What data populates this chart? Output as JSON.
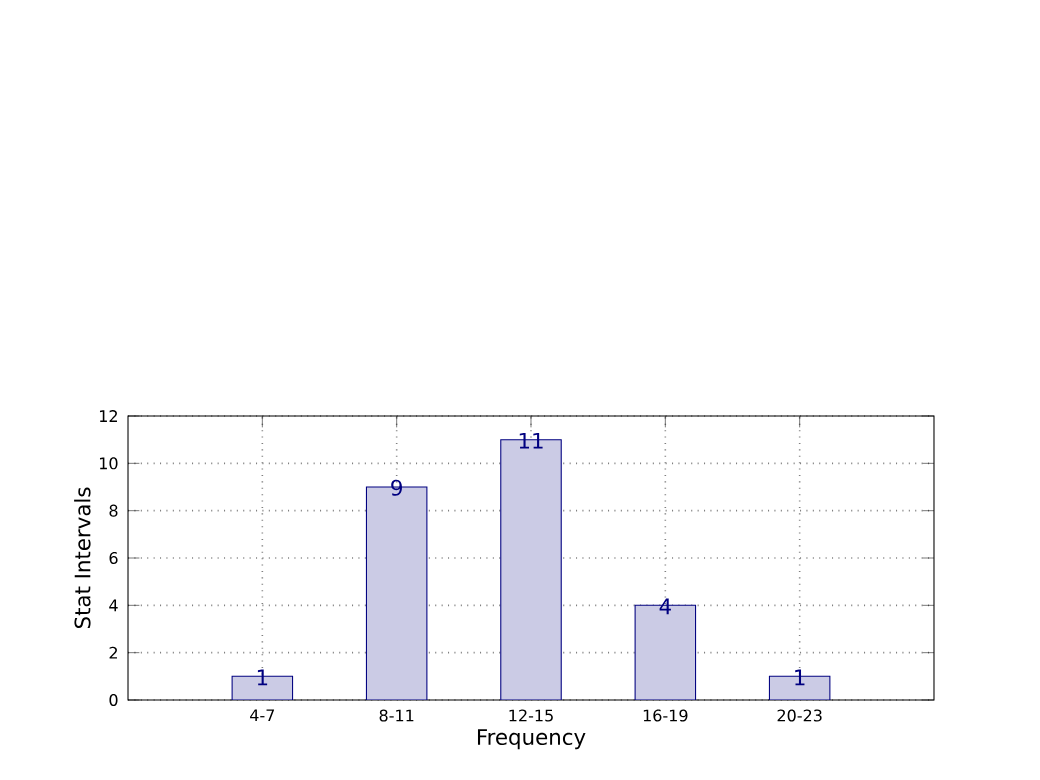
{
  "chart_data": {
    "type": "bar",
    "xlabel": "Frequency",
    "ylabel": "Stat Intervals",
    "categories": [
      "4-7",
      "8-11",
      "12-15",
      "16-19",
      "20-23"
    ],
    "values": [
      1,
      9,
      11,
      4,
      1
    ],
    "color": "#cbcbe5",
    "ylim": [
      0,
      12
    ],
    "yticks": [
      0,
      2,
      4,
      6,
      8,
      10,
      12
    ],
    "grid": true,
    "line_style": "solid",
    "data_labels": true
  }
}
